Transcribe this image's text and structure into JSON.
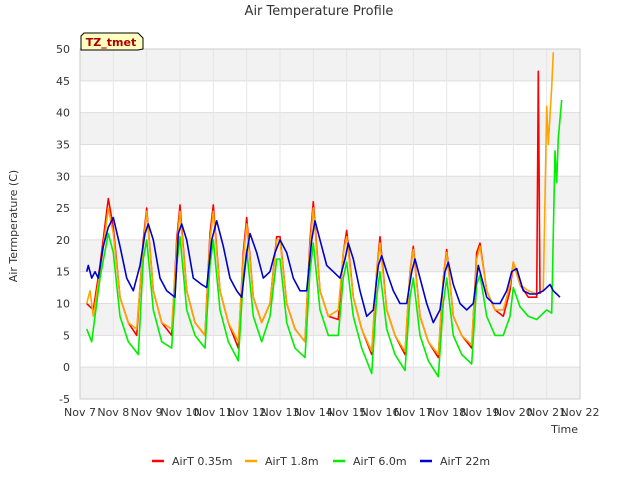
{
  "chart_data": {
    "type": "line",
    "title": "Air Temperature Profile",
    "xlabel": "Time",
    "ylabel": "Air Termperature (C)",
    "badge": "TZ_tmet",
    "ylim": [
      -5,
      50
    ],
    "yticks": [
      -5,
      0,
      5,
      10,
      15,
      20,
      25,
      30,
      35,
      40,
      45,
      50
    ],
    "xlim": [
      7,
      22
    ],
    "xticks": [
      {
        "x": 7,
        "label": "Nov 7"
      },
      {
        "x": 8,
        "label": "Nov 8"
      },
      {
        "x": 9,
        "label": "Nov 9"
      },
      {
        "x": 10,
        "label": "Nov 10"
      },
      {
        "x": 11,
        "label": "Nov 11"
      },
      {
        "x": 12,
        "label": "Nov 12"
      },
      {
        "x": 13,
        "label": "Nov 13"
      },
      {
        "x": 14,
        "label": "Nov 14"
      },
      {
        "x": 15,
        "label": "Nov 15"
      },
      {
        "x": 16,
        "label": "Nov 16"
      },
      {
        "x": 17,
        "label": "Nov 17"
      },
      {
        "x": 18,
        "label": "Nov 18"
      },
      {
        "x": 19,
        "label": "Nov 19"
      },
      {
        "x": 20,
        "label": "Nov 20"
      },
      {
        "x": 21,
        "label": "Nov 21"
      },
      {
        "x": 22,
        "label": "Nov 22"
      }
    ],
    "grid": true,
    "legend_position": "bottom",
    "series": [
      {
        "name": "AirT 0.35m",
        "color": "#ff0000",
        "points": [
          [
            7.2,
            10
          ],
          [
            7.4,
            9
          ],
          [
            7.6,
            16
          ],
          [
            7.85,
            26.5
          ],
          [
            8.0,
            22
          ],
          [
            8.2,
            11
          ],
          [
            8.45,
            7
          ],
          [
            8.7,
            5
          ],
          [
            8.9,
            20
          ],
          [
            9.0,
            25
          ],
          [
            9.2,
            12
          ],
          [
            9.45,
            7
          ],
          [
            9.75,
            5
          ],
          [
            9.9,
            20
          ],
          [
            10.0,
            25.5
          ],
          [
            10.2,
            12
          ],
          [
            10.45,
            7
          ],
          [
            10.75,
            5
          ],
          [
            10.9,
            21
          ],
          [
            11.0,
            25.5
          ],
          [
            11.2,
            12
          ],
          [
            11.45,
            7
          ],
          [
            11.75,
            3
          ],
          [
            11.9,
            18
          ],
          [
            12.0,
            23.5
          ],
          [
            12.2,
            11
          ],
          [
            12.45,
            7
          ],
          [
            12.7,
            10
          ],
          [
            12.9,
            20.5
          ],
          [
            13.0,
            20.5
          ],
          [
            13.2,
            10
          ],
          [
            13.45,
            6
          ],
          [
            13.75,
            4
          ],
          [
            13.9,
            20
          ],
          [
            14.0,
            26
          ],
          [
            14.2,
            12
          ],
          [
            14.45,
            8
          ],
          [
            14.75,
            7.5
          ],
          [
            14.9,
            18
          ],
          [
            15.0,
            21.5
          ],
          [
            15.2,
            11
          ],
          [
            15.45,
            6
          ],
          [
            15.75,
            2
          ],
          [
            15.9,
            15
          ],
          [
            16.0,
            20.5
          ],
          [
            16.2,
            9
          ],
          [
            16.45,
            5
          ],
          [
            16.75,
            2
          ],
          [
            16.9,
            15
          ],
          [
            17.0,
            19
          ],
          [
            17.2,
            8
          ],
          [
            17.45,
            4
          ],
          [
            17.75,
            1.5
          ],
          [
            17.9,
            14
          ],
          [
            18.0,
            18.5
          ],
          [
            18.2,
            8
          ],
          [
            18.45,
            5
          ],
          [
            18.75,
            3
          ],
          [
            18.9,
            18
          ],
          [
            19.0,
            19.5
          ],
          [
            19.2,
            12
          ],
          [
            19.45,
            9
          ],
          [
            19.7,
            8
          ],
          [
            19.9,
            12
          ],
          [
            20.0,
            16.5
          ],
          [
            20.2,
            13
          ],
          [
            20.45,
            11
          ],
          [
            20.7,
            11
          ],
          [
            20.75,
            46.5
          ],
          [
            20.8,
            11.5
          ]
        ]
      },
      {
        "name": "AirT 1.8m",
        "color": "#ffa500",
        "points": [
          [
            7.2,
            10
          ],
          [
            7.3,
            12
          ],
          [
            7.4,
            8
          ],
          [
            7.6,
            15
          ],
          [
            7.85,
            25
          ],
          [
            8.0,
            21
          ],
          [
            8.2,
            11
          ],
          [
            8.45,
            7
          ],
          [
            8.7,
            6
          ],
          [
            8.9,
            19
          ],
          [
            9.0,
            24.5
          ],
          [
            9.2,
            12
          ],
          [
            9.45,
            7
          ],
          [
            9.75,
            6
          ],
          [
            9.9,
            19
          ],
          [
            10.0,
            24.5
          ],
          [
            10.2,
            12
          ],
          [
            10.45,
            7
          ],
          [
            10.75,
            5
          ],
          [
            10.9,
            20
          ],
          [
            11.0,
            24.5
          ],
          [
            11.2,
            12
          ],
          [
            11.45,
            7
          ],
          [
            11.75,
            4
          ],
          [
            11.9,
            17
          ],
          [
            12.0,
            22.5
          ],
          [
            12.2,
            11
          ],
          [
            12.45,
            7
          ],
          [
            12.7,
            10
          ],
          [
            12.9,
            20
          ],
          [
            13.0,
            20
          ],
          [
            13.2,
            10
          ],
          [
            13.45,
            6
          ],
          [
            13.75,
            4
          ],
          [
            13.9,
            19
          ],
          [
            14.0,
            25
          ],
          [
            14.2,
            12
          ],
          [
            14.45,
            8
          ],
          [
            14.75,
            9
          ],
          [
            14.9,
            18
          ],
          [
            15.0,
            20.5
          ],
          [
            15.2,
            11
          ],
          [
            15.45,
            6
          ],
          [
            15.75,
            2.5
          ],
          [
            15.9,
            15
          ],
          [
            16.0,
            19.5
          ],
          [
            16.2,
            9
          ],
          [
            16.45,
            5
          ],
          [
            16.75,
            2.5
          ],
          [
            16.9,
            15
          ],
          [
            17.0,
            18.5
          ],
          [
            17.2,
            8
          ],
          [
            17.45,
            4
          ],
          [
            17.75,
            2
          ],
          [
            17.9,
            14
          ],
          [
            18.0,
            18
          ],
          [
            18.2,
            8
          ],
          [
            18.45,
            5
          ],
          [
            18.75,
            3.5
          ],
          [
            18.9,
            17
          ],
          [
            19.0,
            19
          ],
          [
            19.2,
            12
          ],
          [
            19.45,
            9
          ],
          [
            19.7,
            9
          ],
          [
            19.9,
            13
          ],
          [
            20.0,
            16.5
          ],
          [
            20.2,
            13
          ],
          [
            20.45,
            12
          ],
          [
            20.7,
            11.5
          ],
          [
            20.9,
            12
          ],
          [
            21.0,
            41
          ],
          [
            21.05,
            35
          ],
          [
            21.15,
            44
          ],
          [
            21.2,
            49.5
          ]
        ]
      },
      {
        "name": "AirT 6.0m",
        "color": "#00ee00",
        "points": [
          [
            7.2,
            6
          ],
          [
            7.35,
            4
          ],
          [
            7.45,
            8
          ],
          [
            7.6,
            14
          ],
          [
            7.85,
            21
          ],
          [
            8.0,
            18
          ],
          [
            8.2,
            8
          ],
          [
            8.45,
            4
          ],
          [
            8.75,
            2
          ],
          [
            8.9,
            17
          ],
          [
            9.0,
            20
          ],
          [
            9.2,
            9
          ],
          [
            9.45,
            4
          ],
          [
            9.75,
            3
          ],
          [
            9.9,
            16
          ],
          [
            10.0,
            20.5
          ],
          [
            10.2,
            9
          ],
          [
            10.45,
            5
          ],
          [
            10.75,
            3
          ],
          [
            10.9,
            16
          ],
          [
            11.0,
            20
          ],
          [
            11.2,
            9
          ],
          [
            11.45,
            4
          ],
          [
            11.75,
            1
          ],
          [
            11.9,
            14
          ],
          [
            12.0,
            18.5
          ],
          [
            12.2,
            8
          ],
          [
            12.45,
            4
          ],
          [
            12.7,
            8
          ],
          [
            12.9,
            17
          ],
          [
            13.0,
            17
          ],
          [
            13.2,
            7
          ],
          [
            13.45,
            3
          ],
          [
            13.75,
            1.5
          ],
          [
            13.9,
            15
          ],
          [
            14.0,
            19.5
          ],
          [
            14.2,
            9
          ],
          [
            14.45,
            5
          ],
          [
            14.75,
            5
          ],
          [
            14.9,
            14
          ],
          [
            15.0,
            16.5
          ],
          [
            15.2,
            8
          ],
          [
            15.45,
            3
          ],
          [
            15.75,
            -1
          ],
          [
            15.9,
            11
          ],
          [
            16.0,
            15
          ],
          [
            16.2,
            6
          ],
          [
            16.45,
            2
          ],
          [
            16.75,
            -0.5
          ],
          [
            16.9,
            11
          ],
          [
            17.0,
            14
          ],
          [
            17.2,
            5
          ],
          [
            17.45,
            1
          ],
          [
            17.75,
            -1.5
          ],
          [
            17.9,
            10
          ],
          [
            18.0,
            14
          ],
          [
            18.2,
            5
          ],
          [
            18.45,
            2
          ],
          [
            18.75,
            0.5
          ],
          [
            18.9,
            13
          ],
          [
            19.0,
            14.5
          ],
          [
            19.2,
            8
          ],
          [
            19.45,
            5
          ],
          [
            19.7,
            5
          ],
          [
            19.9,
            8
          ],
          [
            20.0,
            12.5
          ],
          [
            20.2,
            9.5
          ],
          [
            20.45,
            8
          ],
          [
            20.7,
            7.5
          ],
          [
            20.9,
            8.5
          ],
          [
            21.0,
            9
          ],
          [
            21.15,
            8.5
          ],
          [
            21.25,
            34
          ],
          [
            21.3,
            29
          ],
          [
            21.35,
            36
          ],
          [
            21.45,
            42
          ]
        ]
      },
      {
        "name": "AirT 22m",
        "color": "#0000cc",
        "points": [
          [
            7.2,
            15
          ],
          [
            7.25,
            16
          ],
          [
            7.35,
            14
          ],
          [
            7.45,
            15
          ],
          [
            7.55,
            14
          ],
          [
            7.7,
            19
          ],
          [
            7.85,
            22
          ],
          [
            8.0,
            23.5
          ],
          [
            8.2,
            19
          ],
          [
            8.4,
            14
          ],
          [
            8.6,
            12
          ],
          [
            8.8,
            16
          ],
          [
            8.95,
            21
          ],
          [
            9.05,
            22.5
          ],
          [
            9.2,
            20
          ],
          [
            9.4,
            14
          ],
          [
            9.6,
            12
          ],
          [
            9.85,
            11
          ],
          [
            9.95,
            21
          ],
          [
            10.05,
            22.5
          ],
          [
            10.2,
            20
          ],
          [
            10.4,
            14
          ],
          [
            10.65,
            13
          ],
          [
            10.8,
            12.5
          ],
          [
            10.95,
            20
          ],
          [
            11.1,
            23
          ],
          [
            11.3,
            19
          ],
          [
            11.5,
            14
          ],
          [
            11.7,
            12
          ],
          [
            11.85,
            11
          ],
          [
            12.0,
            18
          ],
          [
            12.1,
            21
          ],
          [
            12.3,
            18
          ],
          [
            12.5,
            14
          ],
          [
            12.7,
            15
          ],
          [
            12.85,
            18
          ],
          [
            13.0,
            20
          ],
          [
            13.2,
            18
          ],
          [
            13.4,
            14
          ],
          [
            13.6,
            12
          ],
          [
            13.8,
            12
          ],
          [
            13.95,
            20
          ],
          [
            14.05,
            23
          ],
          [
            14.2,
            20
          ],
          [
            14.4,
            16
          ],
          [
            14.6,
            15
          ],
          [
            14.8,
            14
          ],
          [
            14.95,
            17
          ],
          [
            15.05,
            19.5
          ],
          [
            15.2,
            17
          ],
          [
            15.4,
            12
          ],
          [
            15.6,
            8
          ],
          [
            15.8,
            9
          ],
          [
            15.95,
            16
          ],
          [
            16.05,
            17.5
          ],
          [
            16.2,
            15
          ],
          [
            16.4,
            12
          ],
          [
            16.6,
            10
          ],
          [
            16.8,
            10
          ],
          [
            16.95,
            15
          ],
          [
            17.05,
            17
          ],
          [
            17.2,
            14
          ],
          [
            17.4,
            10
          ],
          [
            17.6,
            7
          ],
          [
            17.8,
            9
          ],
          [
            17.95,
            15
          ],
          [
            18.05,
            16.5
          ],
          [
            18.2,
            13
          ],
          [
            18.4,
            10
          ],
          [
            18.6,
            9
          ],
          [
            18.8,
            10
          ],
          [
            18.95,
            16
          ],
          [
            19.05,
            14
          ],
          [
            19.2,
            11
          ],
          [
            19.4,
            10
          ],
          [
            19.6,
            10
          ],
          [
            19.8,
            12
          ],
          [
            19.95,
            15
          ],
          [
            20.1,
            15.5
          ],
          [
            20.3,
            12
          ],
          [
            20.5,
            11.5
          ],
          [
            20.7,
            11.5
          ],
          [
            20.9,
            12
          ],
          [
            21.0,
            12.5
          ],
          [
            21.1,
            13
          ],
          [
            21.2,
            12
          ],
          [
            21.3,
            11.5
          ],
          [
            21.4,
            11
          ]
        ]
      }
    ]
  }
}
